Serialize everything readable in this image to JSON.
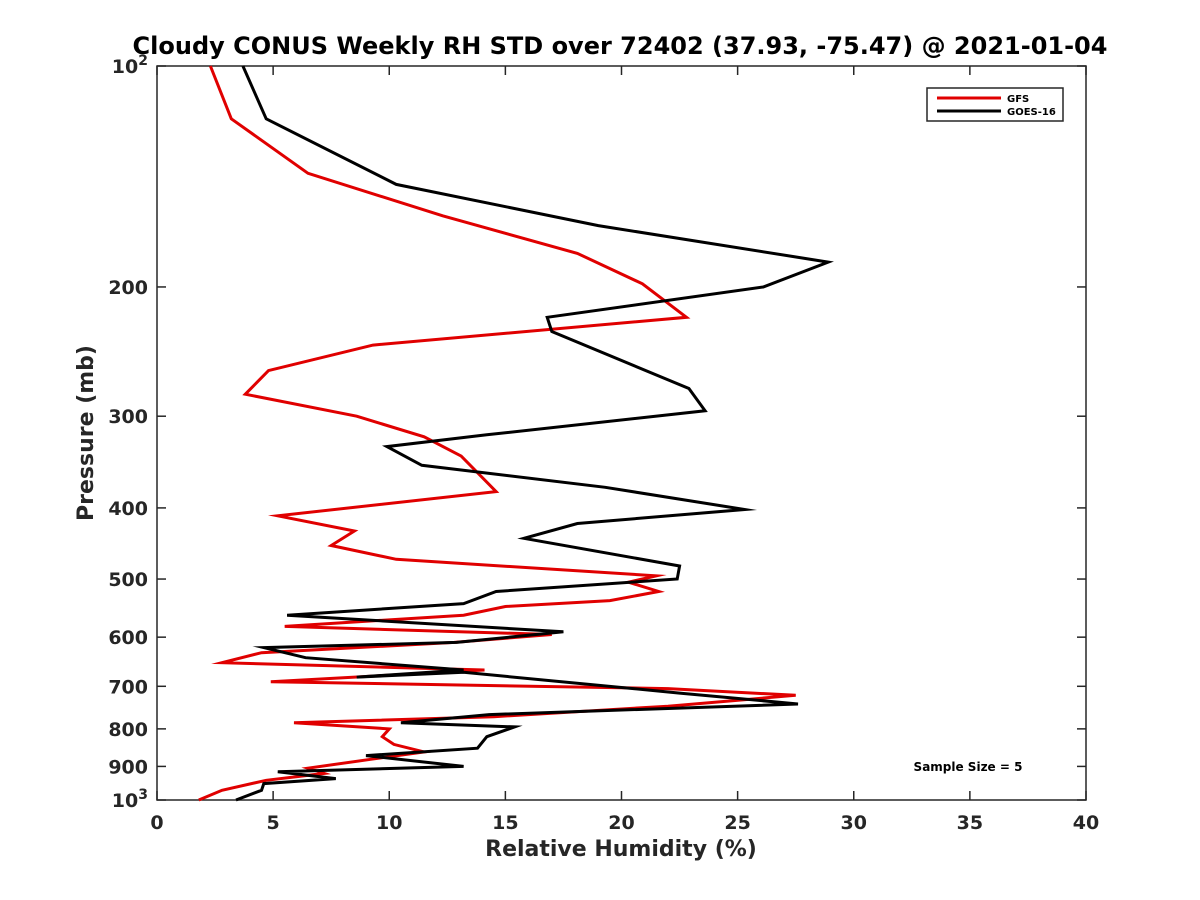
{
  "chart_data": {
    "type": "line",
    "title": "Cloudy CONUS Weekly RH STD over 72402 (37.93, -75.47) @ 2021-01-04",
    "xlabel": "Relative Humidity (%)",
    "ylabel": "Pressure (mb)",
    "xlim": [
      0,
      40
    ],
    "ylim": [
      100,
      1000
    ],
    "y_scale": "log",
    "y_reversed": true,
    "grid": false,
    "legend_position": "top-right",
    "x_ticks": [
      0,
      5,
      10,
      15,
      20,
      25,
      30,
      35,
      40
    ],
    "x_tick_labels": [
      "0",
      "5",
      "10",
      "15",
      "20",
      "25",
      "30",
      "35",
      "40"
    ],
    "y_ticks": [
      100,
      200,
      300,
      400,
      500,
      600,
      700,
      800,
      900,
      1000
    ],
    "y_tick_labels": [
      {
        "base": "10",
        "exp": "2"
      },
      {
        "base": "200",
        "exp": ""
      },
      {
        "base": "300",
        "exp": ""
      },
      {
        "base": "400",
        "exp": ""
      },
      {
        "base": "500",
        "exp": ""
      },
      {
        "base": "600",
        "exp": ""
      },
      {
        "base": "700",
        "exp": ""
      },
      {
        "base": "800",
        "exp": ""
      },
      {
        "base": "900",
        "exp": ""
      },
      {
        "base": "10",
        "exp": "3"
      }
    ],
    "annotation": "Sample Size = 5",
    "series": [
      {
        "name": "GFS",
        "color": "#e00000",
        "x": [
          2.3,
          3.2,
          6.5,
          12.3,
          18.1,
          20.9,
          22.8,
          9.3,
          4.8,
          3.8,
          8.6,
          11.5,
          13.1,
          14.6,
          5.2,
          8.5,
          7.5,
          10.3,
          21.5,
          20.3,
          21.6,
          19.5,
          15.0,
          13.2,
          5.5,
          17.0,
          12.8,
          4.5,
          2.8,
          14.1,
          4.9,
          22.0,
          27.5,
          22.0,
          14.5,
          5.9,
          10.0,
          9.7,
          10.2,
          11.5,
          9.2,
          6.5,
          7.2,
          4.7,
          2.8,
          1.8
        ],
        "y": [
          100,
          118,
          140,
          160,
          180,
          198,
          220,
          240,
          260,
          280,
          300,
          320,
          340,
          380,
          410,
          430,
          450,
          470,
          495,
          505,
          520,
          535,
          545,
          560,
          580,
          595,
          610,
          630,
          650,
          665,
          690,
          705,
          720,
          745,
          770,
          785,
          800,
          820,
          840,
          860,
          880,
          905,
          920,
          940,
          970,
          1000
        ]
      },
      {
        "name": "GOES-16",
        "color": "#000000",
        "x": [
          3.7,
          4.7,
          10.3,
          19.0,
          28.9,
          26.1,
          16.8,
          17.0,
          22.9,
          23.6,
          14.2,
          9.9,
          11.4,
          19.3,
          25.3,
          18.1,
          15.8,
          22.5,
          22.4,
          14.6,
          13.2,
          5.6,
          17.5,
          12.9,
          4.6,
          6.4,
          13.2,
          8.6,
          13.2,
          22.5,
          27.6,
          14.3,
          10.5,
          15.4,
          14.2,
          13.8,
          9.0,
          13.2,
          5.2,
          7.7,
          4.6,
          4.5,
          3.4
        ],
        "y": [
          100,
          118,
          145,
          165,
          185,
          200,
          220,
          230,
          275,
          295,
          318,
          330,
          350,
          375,
          402,
          420,
          440,
          480,
          500,
          520,
          540,
          560,
          590,
          610,
          620,
          640,
          665,
          680,
          670,
          715,
          740,
          765,
          785,
          795,
          820,
          850,
          870,
          900,
          915,
          935,
          950,
          970,
          1000
        ]
      }
    ]
  }
}
